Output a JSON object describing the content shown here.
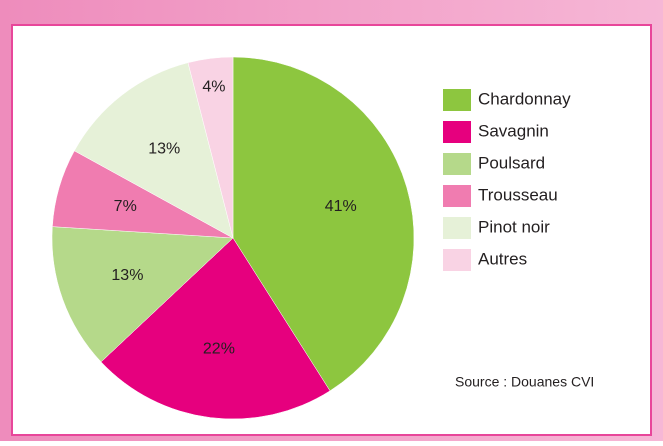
{
  "chart_data": {
    "type": "pie",
    "categories": [
      "Chardonnay",
      "Savagnin",
      "Poulsard",
      "Trousseau",
      "Pinot noir",
      "Autres"
    ],
    "values": [
      41,
      22,
      13,
      7,
      13,
      4
    ],
    "value_labels": [
      "41%",
      "22%",
      "13%",
      "7%",
      "13%",
      "4%"
    ],
    "colors": [
      "#8dc63f",
      "#e6007e",
      "#b5d98a",
      "#f07cb0",
      "#e6f1d8",
      "#f9d3e4"
    ],
    "source": "Source : Douanes CVI"
  }
}
